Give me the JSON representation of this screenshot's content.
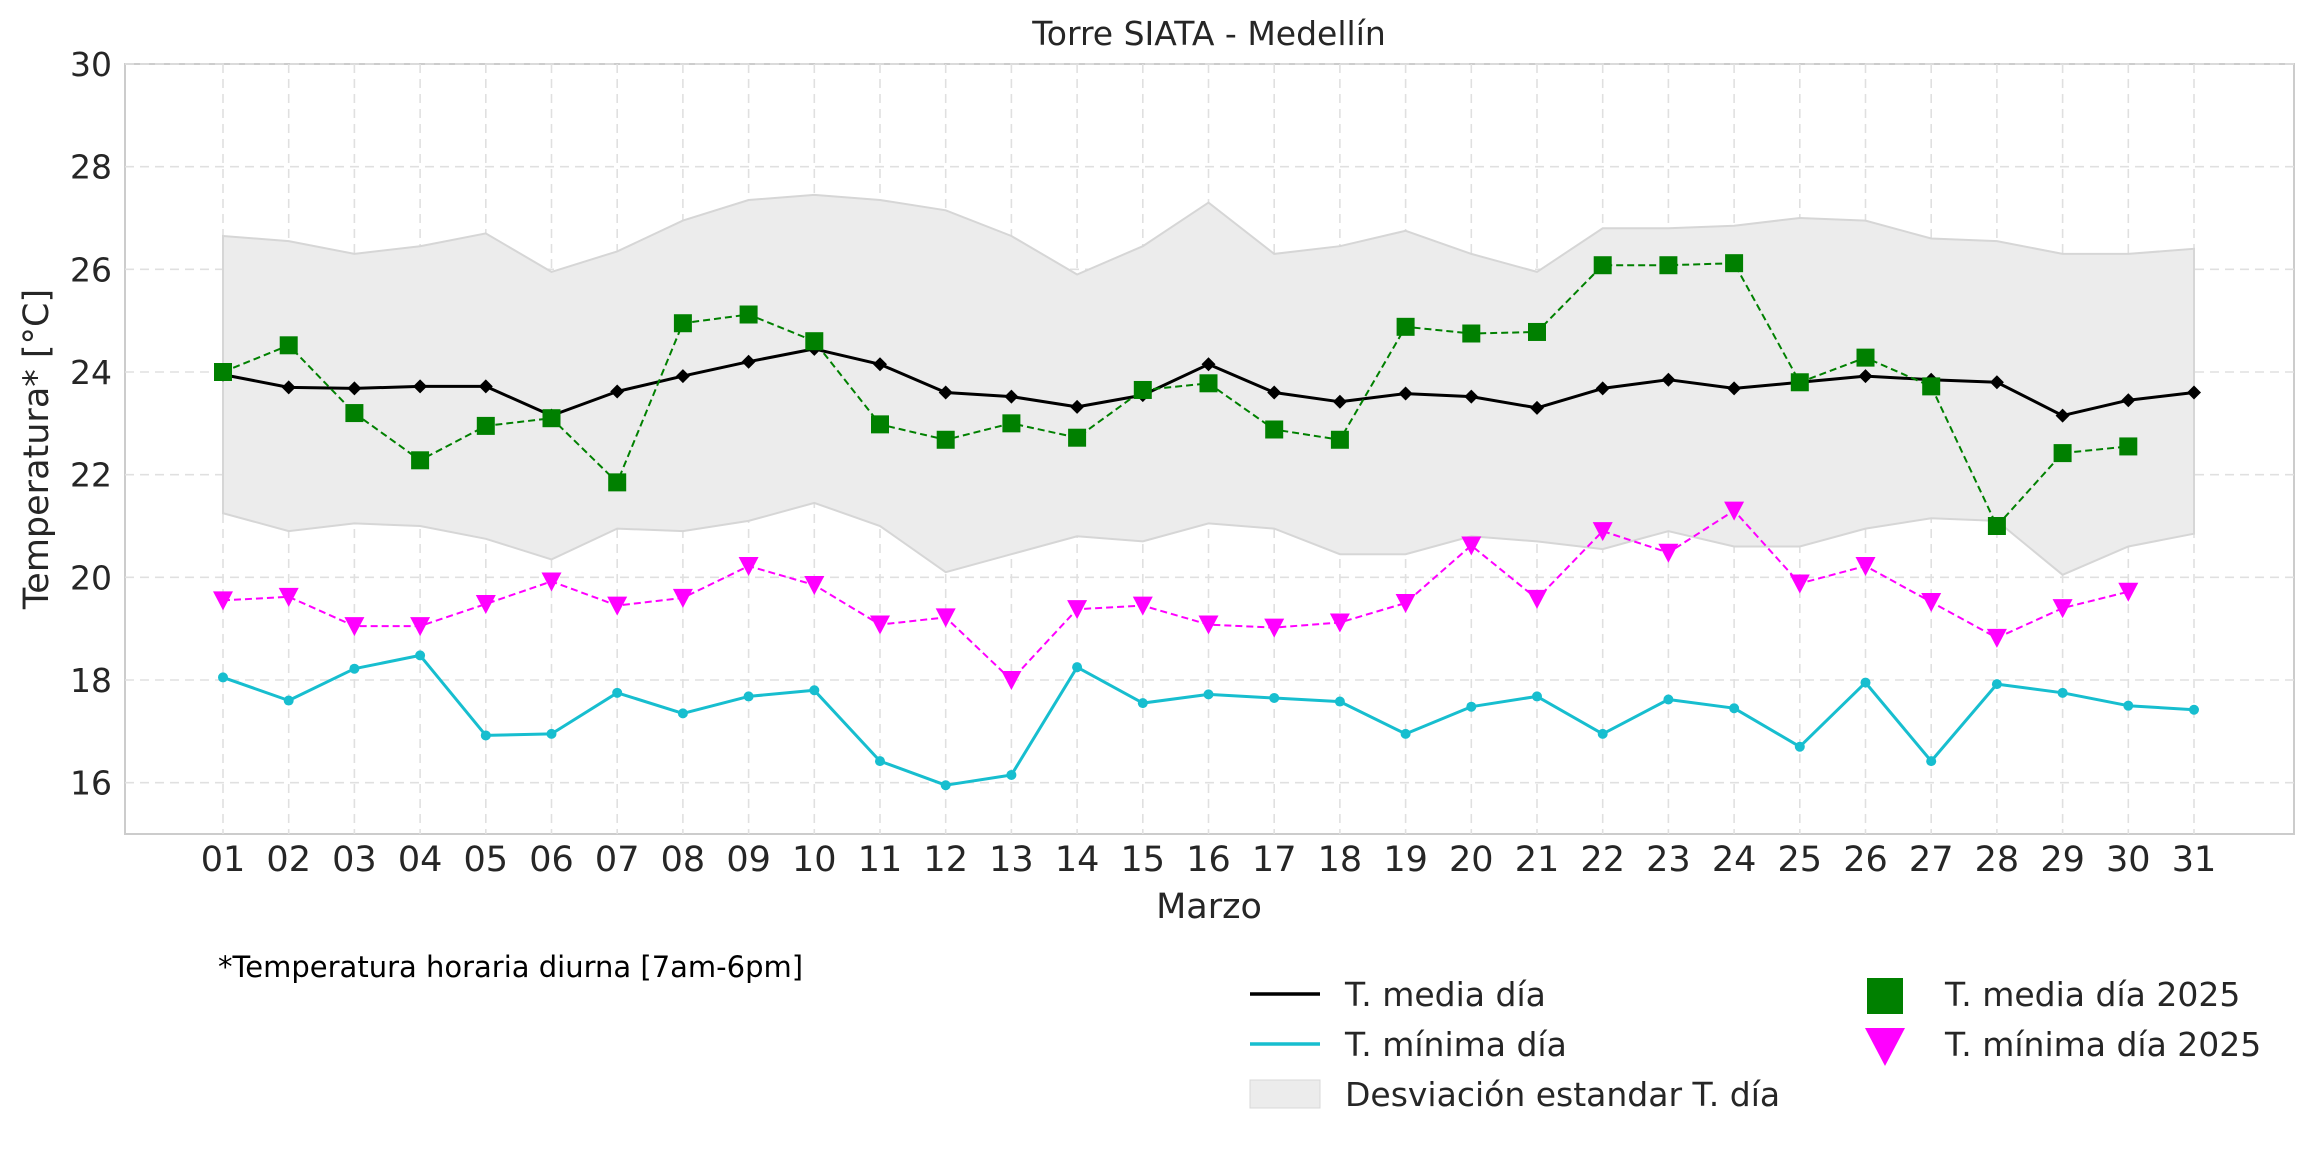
{
  "chart_data": {
    "type": "line",
    "title": "Torre SIATA - Medellín",
    "xlabel": "Marzo",
    "ylabel": "Temperatura* [°C]",
    "ylim": [
      15,
      30
    ],
    "yticks": [
      "16",
      "18",
      "20",
      "22",
      "24",
      "26",
      "28",
      "30"
    ],
    "categories": [
      "01",
      "02",
      "03",
      "04",
      "05",
      "06",
      "07",
      "08",
      "09",
      "10",
      "11",
      "12",
      "13",
      "14",
      "15",
      "16",
      "17",
      "18",
      "19",
      "20",
      "21",
      "22",
      "23",
      "24",
      "25",
      "26",
      "27",
      "28",
      "29",
      "30",
      "31"
    ],
    "footnote": "*Temperatura horaria diurna [7am-6pm]",
    "grid": true,
    "legend_position": "bottom-right",
    "std_band": {
      "name": "Desviación estandar T. día",
      "color": "#ececec",
      "upper": [
        26.65,
        26.55,
        26.3,
        26.45,
        26.7,
        25.95,
        26.35,
        26.95,
        27.35,
        27.45,
        27.35,
        27.15,
        26.65,
        25.9,
        26.45,
        27.3,
        26.3,
        26.45,
        26.75,
        26.3,
        25.95,
        26.8,
        26.8,
        26.85,
        27.0,
        26.95,
        26.6,
        26.55,
        26.3,
        26.3,
        26.4
      ],
      "lower": [
        21.25,
        20.9,
        21.05,
        21.0,
        20.75,
        20.35,
        20.95,
        20.9,
        21.1,
        21.45,
        21.0,
        20.1,
        20.45,
        20.8,
        20.7,
        21.05,
        20.95,
        20.45,
        20.45,
        20.8,
        20.7,
        20.55,
        20.9,
        20.6,
        20.6,
        20.95,
        21.15,
        21.1,
        20.05,
        20.6,
        20.85
      ]
    },
    "series": [
      {
        "name": "T. media día",
        "color": "#000000",
        "style": "solid",
        "marker": "diamond",
        "values": [
          23.95,
          23.7,
          23.68,
          23.72,
          23.72,
          23.15,
          23.62,
          23.92,
          24.2,
          24.45,
          24.15,
          23.6,
          23.52,
          23.32,
          23.55,
          24.15,
          23.6,
          23.42,
          23.58,
          23.52,
          23.3,
          23.68,
          23.85,
          23.68,
          23.8,
          23.92,
          23.85,
          23.8,
          23.15,
          23.45,
          23.6
        ]
      },
      {
        "name": "T. mínima día",
        "color": "#17becf",
        "style": "solid",
        "marker": "circle",
        "values": [
          18.05,
          17.6,
          18.22,
          18.48,
          16.92,
          16.95,
          17.75,
          17.35,
          17.68,
          17.8,
          16.42,
          15.95,
          16.15,
          18.25,
          17.55,
          17.72,
          17.65,
          17.58,
          16.95,
          17.48,
          17.68,
          16.95,
          17.62,
          17.45,
          16.7,
          17.95,
          16.42,
          17.92,
          17.75,
          17.5,
          17.42
        ]
      },
      {
        "name": "T. media día 2025",
        "color": "#008000",
        "style": "dashed",
        "marker": "square",
        "values": [
          24.0,
          24.52,
          23.2,
          22.28,
          22.95,
          23.1,
          21.85,
          24.95,
          25.12,
          24.6,
          22.98,
          22.68,
          23.0,
          22.72,
          23.65,
          23.78,
          22.88,
          22.68,
          24.88,
          24.75,
          24.78,
          26.08,
          26.08,
          26.12,
          23.8,
          24.28,
          23.72,
          21.0,
          22.42,
          22.55,
          null
        ]
      },
      {
        "name": "T. mínima día 2025",
        "color": "#ff00ff",
        "style": "dashed",
        "marker": "triangle-down",
        "values": [
          19.55,
          19.62,
          19.05,
          19.05,
          19.48,
          19.92,
          19.45,
          19.6,
          20.22,
          19.85,
          19.08,
          19.22,
          18.0,
          19.38,
          19.45,
          19.08,
          19.02,
          19.12,
          19.5,
          20.62,
          19.58,
          20.9,
          20.48,
          21.3,
          19.88,
          20.22,
          19.52,
          18.82,
          19.4,
          19.72,
          null
        ]
      }
    ]
  }
}
